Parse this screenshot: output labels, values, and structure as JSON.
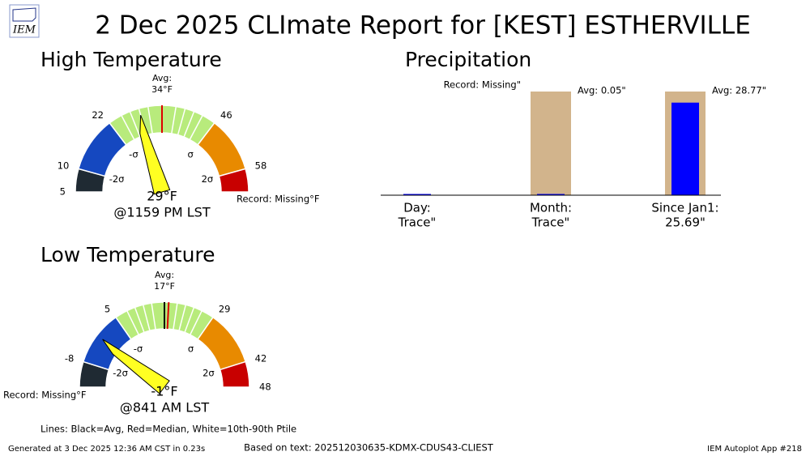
{
  "title": "2 Dec 2025 CLImate Report for [KEST] ESTHERVILLE",
  "logo_text": "IEM",
  "chart_data": [
    {
      "type": "gauge",
      "title": "High Temperature",
      "ylim": [
        5,
        63
      ],
      "ticks": [
        5,
        10,
        22,
        46,
        58
      ],
      "zone_colors": [
        "#1f2a33",
        "#1f2a33",
        "#1548c0",
        "#b8eb7c",
        "#e88a00",
        "#c80000"
      ],
      "avg_title": "Avg:",
      "avg": {
        "value": 34,
        "label": "34°F"
      },
      "median": 34,
      "percentile_lines": [
        25,
        27,
        29,
        31,
        37,
        39,
        41,
        43
      ],
      "sigma_labels": [
        {
          "value": 10,
          "label": "-2σ"
        },
        {
          "value": 22,
          "label": "-σ"
        },
        {
          "value": 46,
          "label": "σ"
        },
        {
          "value": 58,
          "label": "2σ"
        }
      ],
      "value": {
        "value": 29,
        "label": "29°F"
      },
      "time": "@1159 PM LST",
      "record": "Record: Missing°F"
    },
    {
      "type": "gauge",
      "title": "Low Temperature",
      "ylim": [
        -14,
        48
      ],
      "ticks": [
        -8,
        5,
        29,
        42,
        48
      ],
      "zone_colors": [
        "#1f2a33",
        "#1548c0",
        "#b8eb7c",
        "#e88a00",
        "#c80000",
        "#c80000"
      ],
      "avg_title": "Avg:",
      "avg": {
        "value": 17,
        "label": "17°F"
      },
      "median": 18,
      "percentile_lines": [
        8,
        10,
        12,
        14,
        20,
        22,
        24,
        26
      ],
      "sigma_labels": [
        {
          "value": -8,
          "label": "-2σ"
        },
        {
          "value": 5,
          "label": "-σ"
        },
        {
          "value": 29,
          "label": "σ"
        },
        {
          "value": 42,
          "label": "2σ"
        }
      ],
      "value": {
        "value": -1,
        "label": "-1°F"
      },
      "time": "@841 AM LST",
      "record": "Record: Missing°F"
    },
    {
      "type": "bar",
      "title": "Precipitation",
      "categories": [
        "Day:",
        "Month:",
        "Since Jan1:"
      ],
      "series": [
        {
          "color": "#d2b48c",
          "values": [
            null,
            0.05,
            28.77
          ],
          "value_labels": [
            null,
            "Avg: 0.05\"",
            "Avg: 28.77\""
          ]
        },
        {
          "color": "#0000ff",
          "values": [
            0.0001,
            0.0001,
            25.69
          ],
          "value_labels": [
            "Trace\"",
            "Trace\"",
            "25.69\""
          ]
        }
      ],
      "annotations": [
        "Record: Missing\""
      ]
    }
  ],
  "legend_note": "Lines: Black=Avg, Red=Median, White=10th-90th Ptile",
  "footer": {
    "left": "Generated at 3 Dec 2025 12:36 AM CST in 0.23s",
    "center": "Based on text: 202512030635-KDMX-CDUS43-CLIEST",
    "right": "IEM Autoplot App #218"
  }
}
